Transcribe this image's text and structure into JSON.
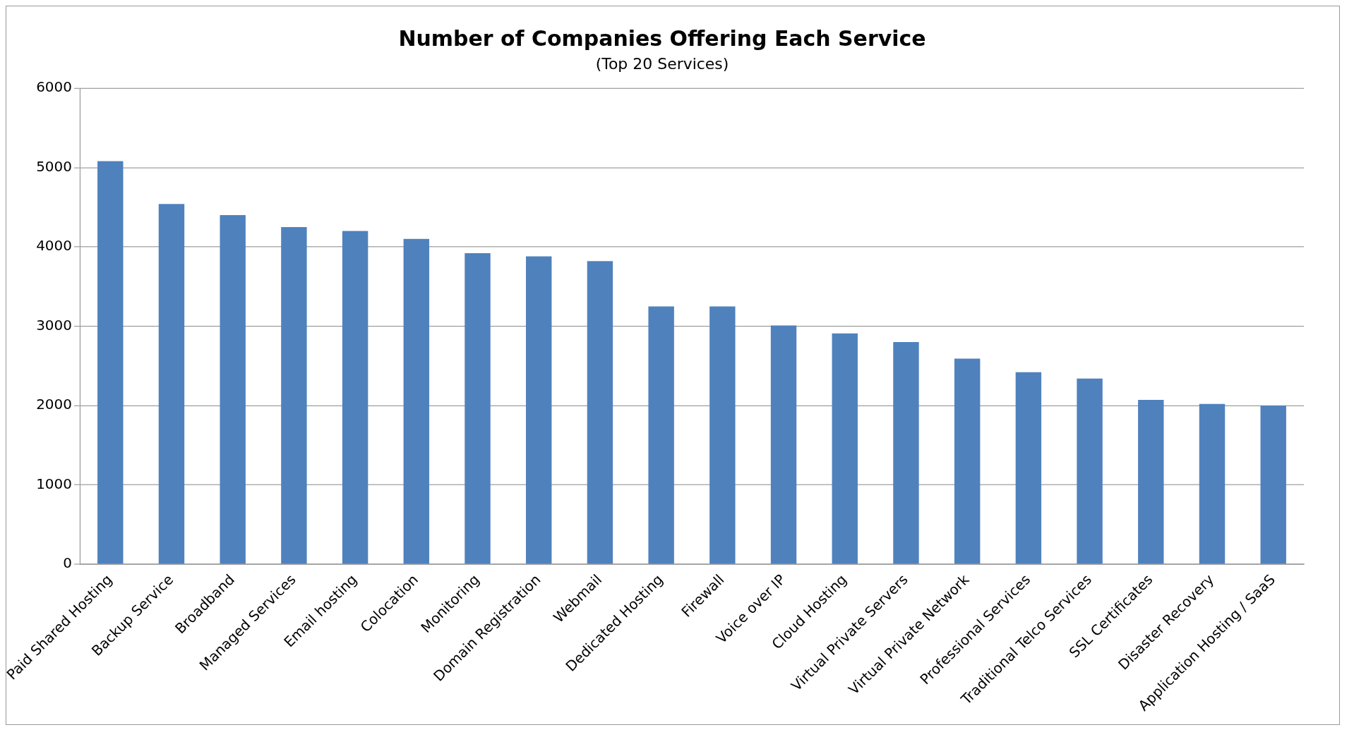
{
  "chart_data": {
    "type": "bar",
    "title": "Number of Companies Offering Each Service",
    "subtitle": "(Top 20 Services)",
    "categories": [
      "Paid Shared Hosting",
      "Backup Service",
      "Broadband",
      "Managed Services",
      "Email hosting",
      "Colocation",
      "Monitoring",
      "Domain Registration",
      "Webmail",
      "Dedicated Hosting",
      "Firewall",
      "Voice over IP",
      "Cloud Hosting",
      "Virtual Private Servers",
      "Virtual Private Network",
      "Professional Services",
      "Traditional Telco Services",
      "SSL Certificates",
      "Disaster Recovery",
      "Application Hosting / SaaS"
    ],
    "values": [
      5080,
      4540,
      4400,
      4250,
      4200,
      4100,
      3920,
      3880,
      3820,
      3250,
      3250,
      3010,
      2910,
      2800,
      2590,
      2420,
      2340,
      2070,
      2020,
      2000
    ],
    "color": "#4f81bd",
    "ylim": [
      0,
      6000
    ],
    "yticks": [
      0,
      1000,
      2000,
      3000,
      4000,
      5000,
      6000
    ],
    "grid": "y",
    "legend": false
  }
}
